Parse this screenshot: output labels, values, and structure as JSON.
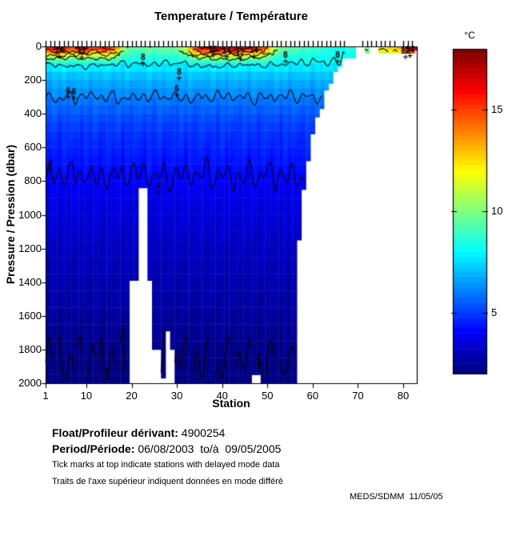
{
  "title": "Temperature / Température",
  "colorbar": {
    "unit_label": "°C",
    "ticks": [
      5,
      10,
      15
    ],
    "clim": [
      2,
      18
    ],
    "colormap": "jet"
  },
  "axes": {
    "x_label": "Station",
    "y_label": "Pressure / Pression (dbar)",
    "x_ticks": [
      1,
      10,
      20,
      30,
      40,
      50,
      60,
      70,
      80
    ],
    "y_ticks": [
      0,
      200,
      400,
      600,
      800,
      1000,
      1200,
      1400,
      1600,
      1800,
      2000
    ],
    "x_range": [
      1,
      83
    ],
    "y_range": [
      0,
      2000
    ]
  },
  "annotations": {
    "float_label": "Float/Profileur dérivant:",
    "float_value": " 4900254",
    "period_label": "Period/Période:",
    "period_value": " 06/08/2003  to/à  09/05/2005",
    "note_en": "Tick marks at top indicate stations with delayed mode data",
    "note_fr": "Traits de l'axe supérieur indiquent données en mode différé",
    "credit": "MEDS/SDMM  11/05/05"
  },
  "chart_data": {
    "type": "heatmap",
    "title": "Temperature / Température",
    "xlabel": "Station",
    "ylabel": "Pressure / Pression (dbar)",
    "value_unit": "°C",
    "n_stations": 83,
    "depth_range_dbar": [
      0,
      2000
    ],
    "color_limits_c": [
      2,
      18
    ],
    "colormap": "jet",
    "surface_temp_c": [
      15.5,
      16,
      17,
      17.5,
      17,
      15.5,
      15,
      16.5,
      17,
      16.5,
      15.5,
      15,
      16,
      16.5,
      15.5,
      15,
      13.5,
      11,
      10,
      9.5,
      9.5,
      9.5,
      10,
      10,
      9.5,
      9.5,
      10,
      10,
      9.5,
      10,
      10.5,
      11.5,
      13.5,
      15,
      16,
      16.5,
      17,
      17.5,
      17.5,
      17,
      16.5,
      17,
      17.5,
      16.5,
      16,
      16.5,
      16,
      15.5,
      15,
      14,
      12,
      10.5,
      10,
      9.5,
      9.5,
      9.5,
      9.5,
      9,
      9,
      9,
      9,
      9,
      8.5,
      8.5,
      8.5,
      8.5,
      8.5,
      8.5,
      8.5,
      0,
      0,
      10.5,
      0,
      0,
      12.5,
      12.5,
      13,
      13,
      13.5,
      15,
      16.5,
      17.5,
      17.5
    ],
    "max_depth_dbar": [
      2000,
      2000,
      2000,
      2000,
      2000,
      2000,
      2000,
      2000,
      2000,
      2000,
      2000,
      2000,
      2000,
      2000,
      2000,
      2000,
      2000,
      2000,
      2000,
      1390,
      1390,
      840,
      840,
      1390,
      1800,
      1800,
      1970,
      1690,
      1800,
      2000,
      2000,
      2000,
      2000,
      2000,
      2000,
      2000,
      2000,
      2000,
      2000,
      2000,
      2000,
      2000,
      2000,
      2000,
      2000,
      2000,
      1950,
      1950,
      2000,
      2000,
      2000,
      2000,
      2000,
      2000,
      2000,
      2000,
      1150,
      850,
      680,
      520,
      420,
      370,
      260,
      220,
      150,
      120,
      70,
      70,
      70,
      0,
      0,
      40,
      0,
      0,
      40,
      40,
      40,
      40,
      40,
      40,
      40,
      40,
      25
    ],
    "profile_depths_dbar": [
      0,
      30,
      60,
      100,
      150,
      200,
      300,
      400,
      500,
      700,
      900,
      1200,
      1500,
      1800,
      2000
    ],
    "profile_temps_c": [
      9.5,
      9.0,
      8.5,
      8.0,
      7.3,
      6.8,
      6.0,
      5.3,
      4.8,
      4.2,
      3.6,
      3.0,
      2.6,
      2.1,
      1.9
    ],
    "surface_layer_decay_dbar": 60,
    "contour_levels_c": [
      2,
      4,
      6,
      8,
      10,
      12,
      14,
      16
    ],
    "contour_labels": [
      {
        "level": 8,
        "station": 22.5,
        "depth": 70
      },
      {
        "level": 8,
        "station": 30.5,
        "depth": 155
      },
      {
        "level": 8,
        "station": 54,
        "depth": 55
      },
      {
        "level": 8,
        "station": 65.5,
        "depth": 55
      },
      {
        "level": 6,
        "station": 6,
        "depth": 265
      },
      {
        "level": 6,
        "station": 7.3,
        "depth": 272
      },
      {
        "level": 6,
        "station": 30,
        "depth": 255
      },
      {
        "level": 4,
        "station": 2,
        "depth": 700
      },
      {
        "level": 4,
        "station": 26,
        "depth": 830
      },
      {
        "level": 2,
        "station": 14.5,
        "depth": 1935
      },
      {
        "level": 2,
        "station": 48,
        "depth": 1850
      },
      {
        "level": 14,
        "station": 4,
        "depth": 25
      },
      {
        "level": 12,
        "station": 9,
        "depth": 32
      },
      {
        "level": 16,
        "station": 38,
        "depth": 18
      },
      {
        "level": 14,
        "station": 41,
        "depth": 28
      },
      {
        "level": 12,
        "station": 44,
        "depth": 40
      },
      {
        "level": 14,
        "station": 47,
        "depth": 25
      },
      {
        "level": 12,
        "station": 80.5,
        "depth": 30
      },
      {
        "level": 14,
        "station": 81.5,
        "depth": 22
      }
    ],
    "delayed_mode_tick_station_ranges": [
      [
        1,
        67
      ],
      [
        71,
        78
      ],
      [
        80,
        82
      ]
    ]
  }
}
